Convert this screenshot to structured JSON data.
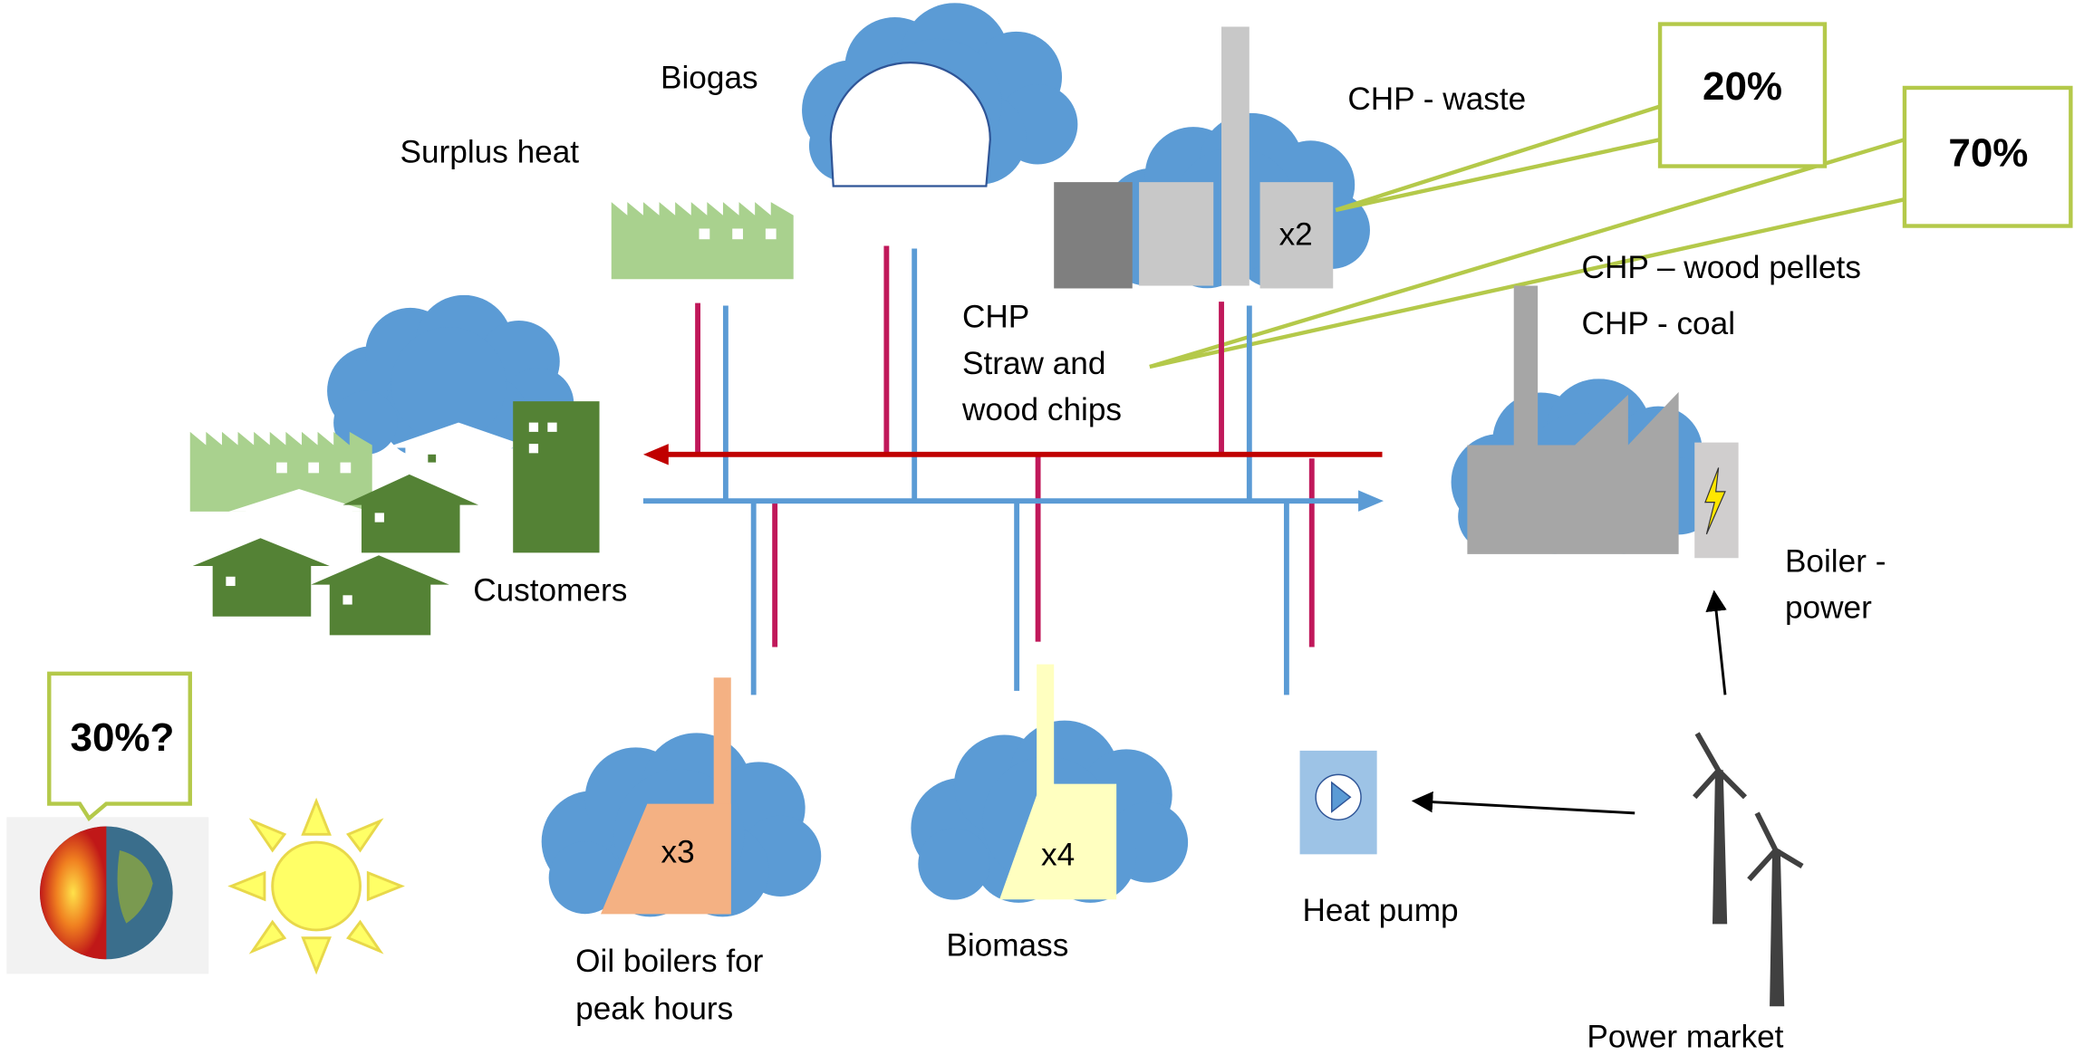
{
  "labels": {
    "biogas": [
      "Biogas"
    ],
    "surplus_heat": [
      "Surplus heat"
    ],
    "chp_waste": [
      "CHP - waste"
    ],
    "chp_wood_pellets": [
      "CHP – wood pellets"
    ],
    "chp_coal": [
      "CHP - coal"
    ],
    "chp_straw": [
      "CHP",
      "Straw and",
      "wood chips"
    ],
    "customers": [
      "Customers"
    ],
    "boiler_power": [
      "Boiler -",
      "power"
    ],
    "oil_boilers": [
      "Oil boilers for",
      "peak hours"
    ],
    "biomass": [
      "Biomass"
    ],
    "heat_pump": [
      "Heat pump"
    ],
    "power_market": [
      "Power market"
    ]
  },
  "multipliers": {
    "waste": "x2",
    "oil": "x3",
    "biomass": "x4"
  },
  "callouts": {
    "waste_share": "20%",
    "chp_share": "70%",
    "geothermal_share": "30%?"
  }
}
